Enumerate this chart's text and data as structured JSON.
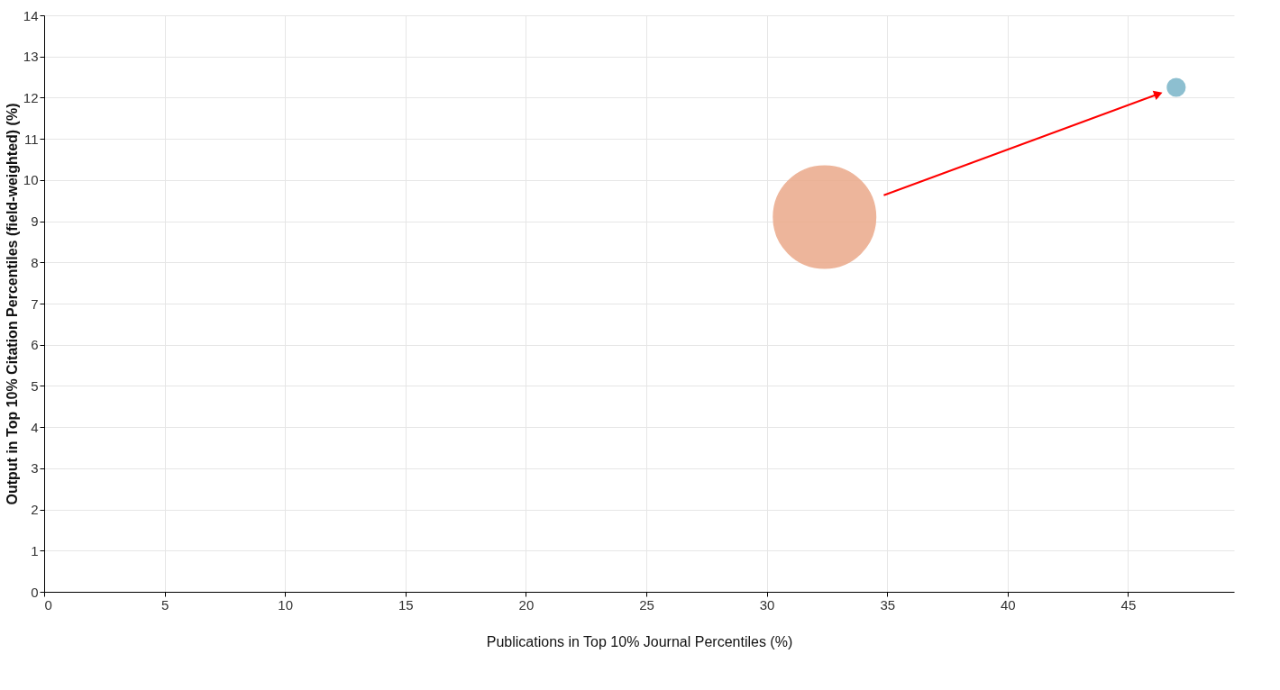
{
  "chart_data": {
    "type": "bubble",
    "xlabel": "Publications in Top 10% Journal Percentiles (%)",
    "ylabel": "Output in Top 10% Citation Percentiles (field-weighted) (%)",
    "series": [
      {
        "color": "#eba98a",
        "x": [
          32.4
        ],
        "values": [
          9.1
        ],
        "sizes": [
          1
        ]
      },
      {
        "color": "#7ab5c8",
        "x": [
          47.0
        ],
        "values": [
          12.25
        ],
        "sizes": [
          0.03
        ]
      }
    ],
    "xlim": [
      0,
      49.4
    ],
    "xticks": [
      0,
      5,
      10,
      15,
      20,
      25,
      30,
      35,
      40,
      45
    ],
    "ylim": [
      0,
      14
    ],
    "yticks": [
      0,
      1,
      2,
      3,
      4,
      5,
      6,
      7,
      8,
      9,
      10,
      11,
      12,
      13,
      14
    ],
    "grid": true
  }
}
